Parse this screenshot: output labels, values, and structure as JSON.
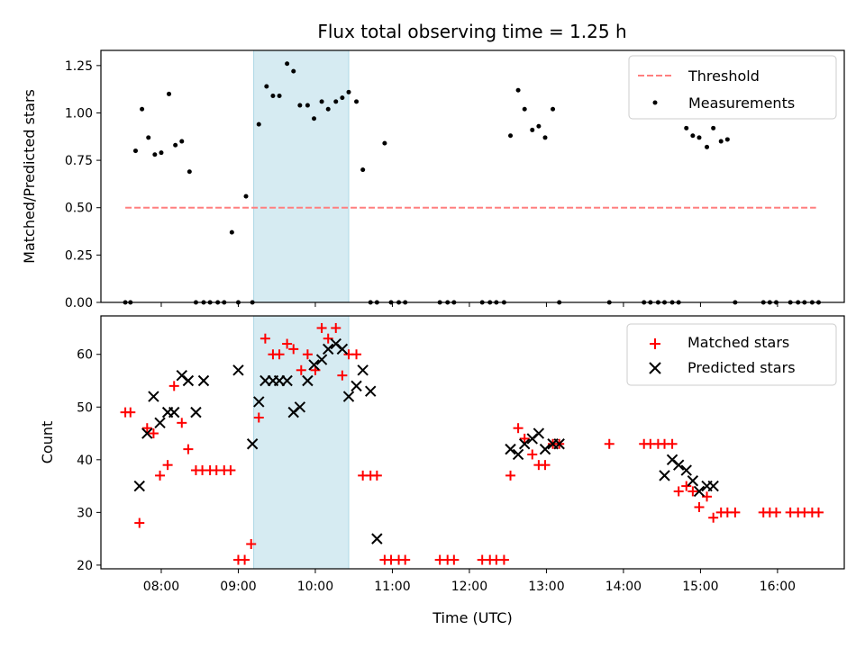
{
  "chart_data": [
    {
      "type": "scatter",
      "title": "Flux total observing time = 1.25 h",
      "ylabel": "Matched/Predicted stars",
      "xlabel": "",
      "xlim": [
        "07:13",
        "16:52"
      ],
      "ylim": [
        0,
        1.33
      ],
      "yticks": [
        "0.00",
        "0.25",
        "0.50",
        "0.75",
        "1.00",
        "1.25"
      ],
      "ytick_values": [
        0,
        0.25,
        0.5,
        0.75,
        1.0,
        1.25
      ],
      "xticks": [
        "08:00",
        "09:00",
        "10:00",
        "11:00",
        "12:00",
        "13:00",
        "14:00",
        "15:00",
        "16:00"
      ],
      "xtick_values": [
        "08:00",
        "09:00",
        "10:00",
        "11:00",
        "12:00",
        "13:00",
        "14:00",
        "15:00",
        "16:00"
      ],
      "shaded_region": [
        "09:12",
        "10:26"
      ],
      "shaded_color": "#add8e6",
      "legend": {
        "position": "upper right",
        "entries": [
          "Threshold",
          "Measurements"
        ]
      },
      "threshold": {
        "name": "Threshold",
        "value": 0.5,
        "x": [
          "07:32",
          "16:30"
        ],
        "color": "#ff7f7f",
        "style": "dashed"
      },
      "measurements": {
        "name": "Measurements",
        "color": "#000000",
        "x": [
          "07:32",
          "07:36",
          "07:40",
          "07:45",
          "07:50",
          "07:55",
          "08:00",
          "08:06",
          "08:11",
          "08:16",
          "08:22",
          "08:27",
          "08:33",
          "08:38",
          "08:44",
          "08:49",
          "08:55",
          "09:00",
          "09:06",
          "09:11",
          "09:16",
          "09:22",
          "09:27",
          "09:32",
          "09:38",
          "09:43",
          "09:48",
          "09:54",
          "09:59",
          "10:05",
          "10:10",
          "10:16",
          "10:21",
          "10:26",
          "10:32",
          "10:37",
          "10:43",
          "10:48",
          "10:54",
          "10:59",
          "11:05",
          "11:10",
          "11:37",
          "11:43",
          "11:48",
          "12:10",
          "12:16",
          "12:21",
          "12:27",
          "12:32",
          "12:38",
          "12:43",
          "12:49",
          "12:54",
          "12:59",
          "13:05",
          "13:10",
          "13:49",
          "14:16",
          "14:21",
          "14:27",
          "14:32",
          "14:38",
          "14:43",
          "14:49",
          "14:54",
          "14:59",
          "15:05",
          "15:10",
          "15:16",
          "15:21",
          "15:27",
          "15:49",
          "15:54",
          "15:59",
          "16:10",
          "16:16",
          "16:21",
          "16:27",
          "16:32"
        ],
        "y": [
          0,
          0,
          0.8,
          1.02,
          0.87,
          0.78,
          0.79,
          1.1,
          0.83,
          0.85,
          0.69,
          0,
          0,
          0,
          0,
          0,
          0.37,
          0,
          0.56,
          0,
          0.94,
          1.14,
          1.09,
          1.09,
          1.26,
          1.22,
          1.04,
          1.04,
          0.97,
          1.06,
          1.02,
          1.06,
          1.08,
          1.11,
          1.06,
          0.7,
          0,
          0,
          0.84,
          0,
          0,
          0,
          0,
          0,
          0,
          0,
          0,
          0,
          0,
          0.88,
          1.12,
          1.02,
          0.91,
          0.93,
          0.87,
          1.02,
          0,
          0,
          0,
          0,
          0,
          0,
          0,
          0,
          0.92,
          0.88,
          0.87,
          0.82,
          0.92,
          0.85,
          0.86,
          0,
          0,
          0,
          0,
          0,
          0,
          0,
          0,
          0
        ]
      }
    },
    {
      "type": "scatter",
      "title": "",
      "xlabel": "Time (UTC)",
      "ylabel": "Count",
      "xlim": [
        "07:13",
        "16:52"
      ],
      "ylim": [
        19.3,
        67.3
      ],
      "yticks": [
        "20",
        "30",
        "40",
        "50",
        "60"
      ],
      "ytick_values": [
        20,
        30,
        40,
        50,
        60
      ],
      "xticks": [
        "08:00",
        "09:00",
        "10:00",
        "11:00",
        "12:00",
        "13:00",
        "14:00",
        "15:00",
        "16:00"
      ],
      "xtick_values": [
        "08:00",
        "09:00",
        "10:00",
        "11:00",
        "12:00",
        "13:00",
        "14:00",
        "15:00",
        "16:00"
      ],
      "shaded_region": [
        "09:12",
        "10:26"
      ],
      "shaded_color": "#add8e6",
      "legend": {
        "position": "upper right",
        "entries": [
          "Matched stars",
          "Predicted stars"
        ]
      },
      "series": [
        {
          "name": "Matched stars",
          "marker": "plus",
          "color": "#ff0000",
          "x": [
            "07:32",
            "07:36",
            "07:43",
            "07:49",
            "07:54",
            "07:59",
            "08:05",
            "08:10",
            "08:16",
            "08:21",
            "08:27",
            "08:32",
            "08:38",
            "08:43",
            "08:49",
            "08:54",
            "09:00",
            "09:05",
            "09:10",
            "09:16",
            "09:21",
            "09:27",
            "09:32",
            "09:38",
            "09:43",
            "09:49",
            "09:54",
            "10:00",
            "10:05",
            "10:10",
            "10:16",
            "10:21",
            "10:26",
            "10:32",
            "10:37",
            "10:43",
            "10:48",
            "10:54",
            "10:59",
            "11:05",
            "11:10",
            "11:37",
            "11:43",
            "11:48",
            "12:10",
            "12:16",
            "12:21",
            "12:27",
            "12:32",
            "12:38",
            "12:43",
            "12:49",
            "12:54",
            "12:59",
            "13:05",
            "13:10",
            "13:49",
            "14:16",
            "14:21",
            "14:27",
            "14:32",
            "14:38",
            "14:43",
            "14:49",
            "14:54",
            "14:59",
            "15:05",
            "15:10",
            "15:16",
            "15:21",
            "15:27",
            "15:49",
            "15:54",
            "15:59",
            "16:10",
            "16:16",
            "16:21",
            "16:27",
            "16:32"
          ],
          "y": [
            49,
            49,
            28,
            46,
            45,
            37,
            39,
            54,
            47,
            42,
            38,
            38,
            38,
            38,
            38,
            38,
            21,
            21,
            24,
            48,
            63,
            60,
            60,
            62,
            61,
            57,
            60,
            57,
            65,
            63,
            65,
            56,
            60,
            60,
            37,
            37,
            37,
            21,
            21,
            21,
            21,
            21,
            21,
            21,
            21,
            21,
            21,
            21,
            37,
            46,
            44,
            41,
            39,
            39,
            43,
            43,
            43,
            43,
            43,
            43,
            43,
            43,
            34,
            35,
            34,
            31,
            33,
            29,
            30,
            30,
            30,
            30,
            30,
            30,
            30,
            30,
            30,
            30,
            30
          ]
        },
        {
          "name": "Predicted stars",
          "marker": "x",
          "color": "#000000",
          "x": [
            "07:43",
            "07:49",
            "07:54",
            "07:59",
            "08:05",
            "08:10",
            "08:16",
            "08:21",
            "08:27",
            "08:33",
            "09:00",
            "09:11",
            "09:16",
            "09:21",
            "09:27",
            "09:32",
            "09:38",
            "09:43",
            "09:48",
            "09:54",
            "09:59",
            "10:05",
            "10:10",
            "10:16",
            "10:21",
            "10:26",
            "10:32",
            "10:37",
            "10:43",
            "10:48",
            "12:32",
            "12:38",
            "12:43",
            "12:49",
            "12:54",
            "12:59",
            "13:05",
            "13:10",
            "14:32",
            "14:38",
            "14:43",
            "14:49",
            "14:54",
            "14:59",
            "15:05",
            "15:10"
          ],
          "y": [
            35,
            45,
            52,
            47,
            49,
            49,
            56,
            55,
            49,
            55,
            57,
            43,
            51,
            55,
            55,
            55,
            55,
            49,
            50,
            55,
            58,
            59,
            61,
            62,
            61,
            52,
            54,
            57,
            53,
            25,
            42,
            41,
            43,
            44,
            45,
            42,
            43,
            43,
            37,
            40,
            39,
            38,
            36,
            34,
            35,
            35
          ]
        }
      ]
    }
  ]
}
